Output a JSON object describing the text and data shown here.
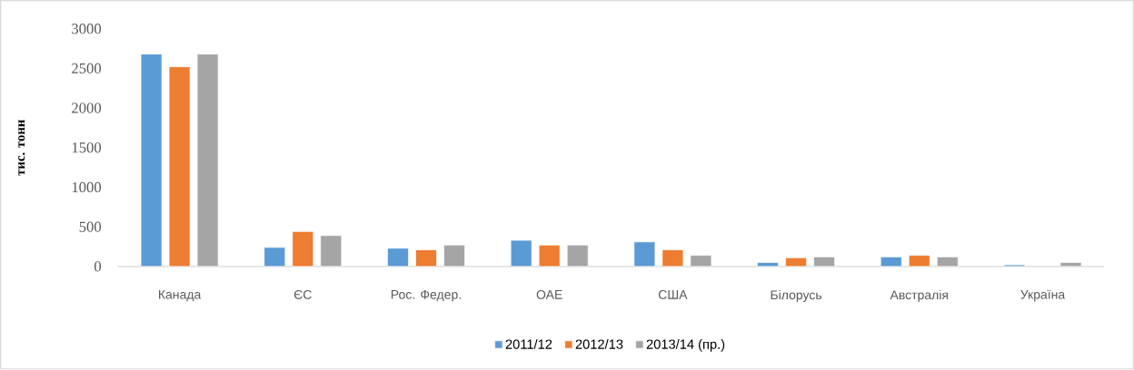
{
  "chart_data": {
    "type": "bar",
    "ylabel": "тис. тонн",
    "categories": [
      "Канада",
      "ЄС",
      "Рос. Федер.",
      "ОАЕ",
      "США",
      "Білорусь",
      "Австралія",
      "Україна"
    ],
    "series": [
      {
        "name": "2011/12",
        "color": "#5b9bd5",
        "values": [
          2680,
          240,
          230,
          330,
          310,
          50,
          120,
          20
        ]
      },
      {
        "name": "2012/13",
        "color": "#ed7d31",
        "values": [
          2520,
          440,
          210,
          270,
          210,
          110,
          140,
          null
        ]
      },
      {
        "name": "2013/14 (пр.)",
        "color": "#a5a5a5",
        "values": [
          2680,
          390,
          270,
          270,
          140,
          120,
          120,
          50
        ]
      }
    ],
    "ylim": [
      0,
      3000
    ],
    "yticks": [
      0,
      500,
      1000,
      1500,
      2000,
      2500,
      3000
    ],
    "grid": false,
    "legend": "bottom"
  }
}
